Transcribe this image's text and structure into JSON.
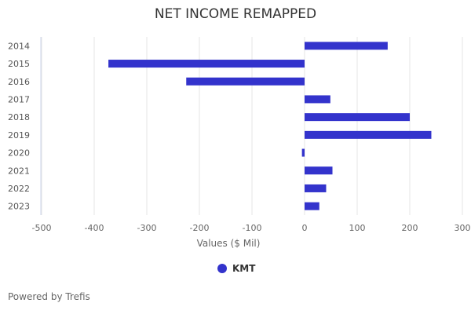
{
  "chart_data": {
    "type": "bar",
    "orientation": "horizontal",
    "title": "NET INCOME REMAPPED",
    "xlabel": "Values ($ Mil)",
    "ylabel": "",
    "categories": [
      "2014",
      "2015",
      "2016",
      "2017",
      "2018",
      "2019",
      "2020",
      "2021",
      "2022",
      "2023"
    ],
    "series": [
      {
        "name": "KMT",
        "values": [
          158,
          -373,
          -225,
          49,
          200,
          241,
          -5,
          53,
          41,
          28
        ]
      }
    ],
    "xlim": [
      -500,
      300
    ],
    "xticks": [
      "-500",
      "-400",
      "-300",
      "-200",
      "-100",
      "0",
      "100",
      "200",
      "300"
    ],
    "grid": true,
    "legend_position": "bottom",
    "bar_color": "#3333cc"
  },
  "footer": {
    "powered_by": "Powered by Trefis"
  }
}
